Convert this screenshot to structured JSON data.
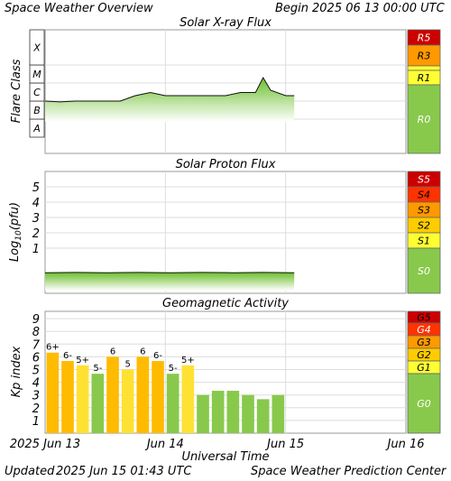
{
  "header": {
    "title": "Space Weather Overview",
    "begin_label": "Begin",
    "begin_value": "2025 06 13 00:00 UTC"
  },
  "footer": {
    "updated_label": "Updated",
    "updated_value": "2025 Jun 15 01:43 UTC",
    "credit": "Space Weather Prediction Center"
  },
  "colors": {
    "extreme": "#cc0000",
    "severe": "#ff3300",
    "strong": "#ff9900",
    "moderate": "#ffcc00",
    "minor": "#ffff33",
    "quiet": "#88c94c",
    "kp_storm": "#ffbb00",
    "kp_active": "#ffe133",
    "kp_quiet": "#88c94c",
    "grid": "#dddddd"
  },
  "chart_data": [
    {
      "type": "line",
      "title": "Solar X-ray Flux",
      "ylabel": "Flare Class",
      "y_classes": [
        "A",
        "B",
        "C",
        "M",
        "X"
      ],
      "scale": "log",
      "x": [
        "2025-06-13 00:00",
        "2025-06-13 03:00",
        "2025-06-13 06:00",
        "2025-06-13 09:00",
        "2025-06-13 12:00",
        "2025-06-13 15:00",
        "2025-06-13 18:00",
        "2025-06-13 21:00",
        "2025-06-14 00:00",
        "2025-06-14 03:00",
        "2025-06-14 06:00",
        "2025-06-14 09:00",
        "2025-06-14 12:00",
        "2025-06-14 15:00",
        "2025-06-14 18:00",
        "2025-06-14 19:30",
        "2025-06-14 21:00",
        "2025-06-15 00:00",
        "2025-06-15 01:43"
      ],
      "values": [
        "C1",
        "B9",
        "C1",
        "C1",
        "C1",
        "C1",
        "C2",
        "C3",
        "C2",
        "C2",
        "C2",
        "C2",
        "C2",
        "C3",
        "C3",
        "M2",
        "C4",
        "C2",
        "C2"
      ],
      "scale_labels": [
        "R5",
        "R3",
        "R1",
        "R0"
      ]
    },
    {
      "type": "line",
      "title": "Solar Proton Flux",
      "ylabel": "Log10(pfu)",
      "ylabel_main": "Log",
      "ylabel_sub": "10",
      "ylabel_unit": "(pfu)",
      "yticks": [
        "1",
        "2",
        "3",
        "4",
        "5"
      ],
      "values_log_pfu": [
        -0.6,
        -0.58,
        -0.6,
        -0.58,
        -0.6,
        -0.58,
        -0.6,
        -0.58,
        -0.6
      ],
      "scale_labels": [
        "S5",
        "S4",
        "S3",
        "S2",
        "S1",
        "S0"
      ]
    },
    {
      "type": "bar",
      "title": "Geomagnetic Activity",
      "ylabel": "Kp index",
      "yticks": [
        "1",
        "2",
        "3",
        "4",
        "5",
        "6",
        "7",
        "8",
        "9"
      ],
      "values": [
        6.33,
        5.67,
        5.33,
        4.67,
        6.0,
        5.0,
        6.0,
        5.67,
        4.67,
        5.33,
        3.0,
        3.33,
        3.33,
        3.0,
        2.67,
        3.0
      ],
      "bar_labels": [
        "6+",
        "6-",
        "5+",
        "5-",
        "6",
        "5",
        "6",
        "6-",
        "5-",
        "5+",
        "",
        "",
        "",
        "",
        "",
        ""
      ],
      "scale_labels": [
        "G5",
        "G4",
        "G3",
        "G2",
        "G1",
        "G0"
      ]
    }
  ],
  "xaxis": {
    "ticks": [
      "2025 Jun 13",
      "Jun 14",
      "Jun 15",
      "Jun 16"
    ],
    "label": "Universal Time"
  }
}
